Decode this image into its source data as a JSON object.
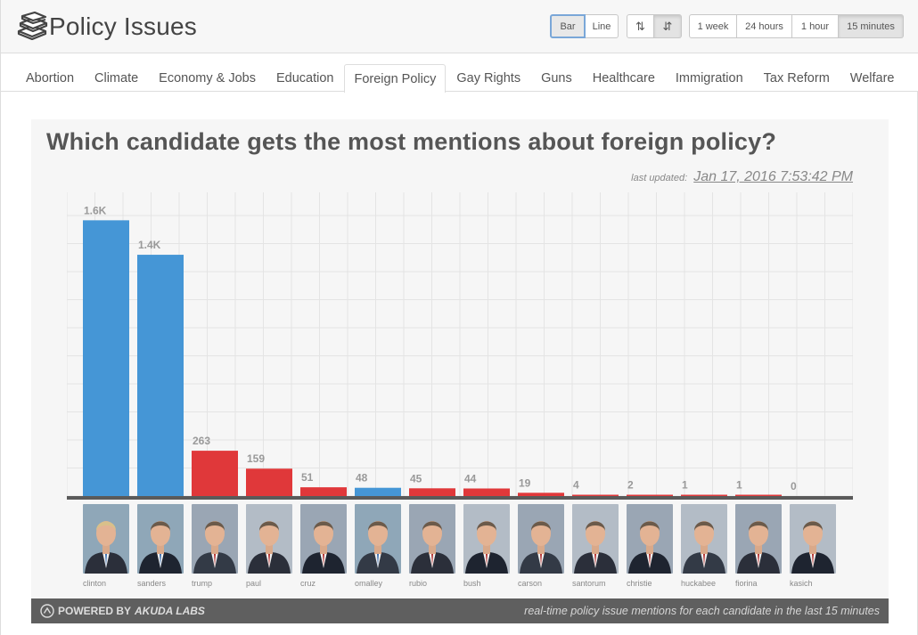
{
  "app": {
    "title": "Policy Issues",
    "logo_icon": "books-icon"
  },
  "controls": {
    "chart_type": [
      {
        "label": "Bar",
        "state": "focused"
      },
      {
        "label": "Line",
        "state": ""
      }
    ],
    "sort": [
      {
        "icon": "sort-ascending-icon",
        "glyph": "⇅",
        "state": ""
      },
      {
        "icon": "sort-descending-icon",
        "glyph": "⇵",
        "state": "active"
      }
    ],
    "timeframes": [
      {
        "label": "1 week",
        "state": ""
      },
      {
        "label": "24 hours",
        "state": ""
      },
      {
        "label": "1 hour",
        "state": ""
      },
      {
        "label": "15 minutes",
        "state": "active"
      }
    ]
  },
  "tabs": [
    "Abortion",
    "Climate",
    "Economy & Jobs",
    "Education",
    "Foreign Policy",
    "Gay Rights",
    "Guns",
    "Healthcare",
    "Immigration",
    "Tax Reform",
    "Welfare"
  ],
  "active_tab": "Foreign Policy",
  "chart": {
    "title": "Which candidate gets the most mentions about foreign policy?",
    "updated_label": "last updated:",
    "updated_value": "Jan 17, 2016 7:53:42 PM"
  },
  "footer": {
    "powered_prefix": "POWERED BY",
    "powered_brand": "AKUDA LABS",
    "caption": "real-time policy issue mentions for each candidate in the last 15 minutes"
  },
  "colors": {
    "democrat": "#4596d6",
    "republican": "#e0383a",
    "baseline": "#5a5a5a"
  },
  "chart_data": {
    "type": "bar",
    "title": "Which candidate gets the most mentions about foreign policy?",
    "xlabel": "",
    "ylabel": "",
    "ylim": [
      0,
      1700
    ],
    "grid": true,
    "categories": [
      "clinton",
      "sanders",
      "trump",
      "paul",
      "cruz",
      "omalley",
      "rubio",
      "bush",
      "carson",
      "santorum",
      "christie",
      "huckabee",
      "fiorina",
      "kasich"
    ],
    "values": [
      1600,
      1400,
      263,
      159,
      51,
      48,
      45,
      44,
      19,
      4,
      2,
      1,
      1,
      0
    ],
    "value_labels": [
      "1.6K",
      "1.4K",
      "263",
      "159",
      "51",
      "48",
      "45",
      "44",
      "19",
      "4",
      "2",
      "1",
      "1",
      "0"
    ],
    "party": [
      "D",
      "D",
      "R",
      "R",
      "R",
      "D",
      "R",
      "R",
      "R",
      "R",
      "R",
      "R",
      "R",
      "R"
    ]
  }
}
